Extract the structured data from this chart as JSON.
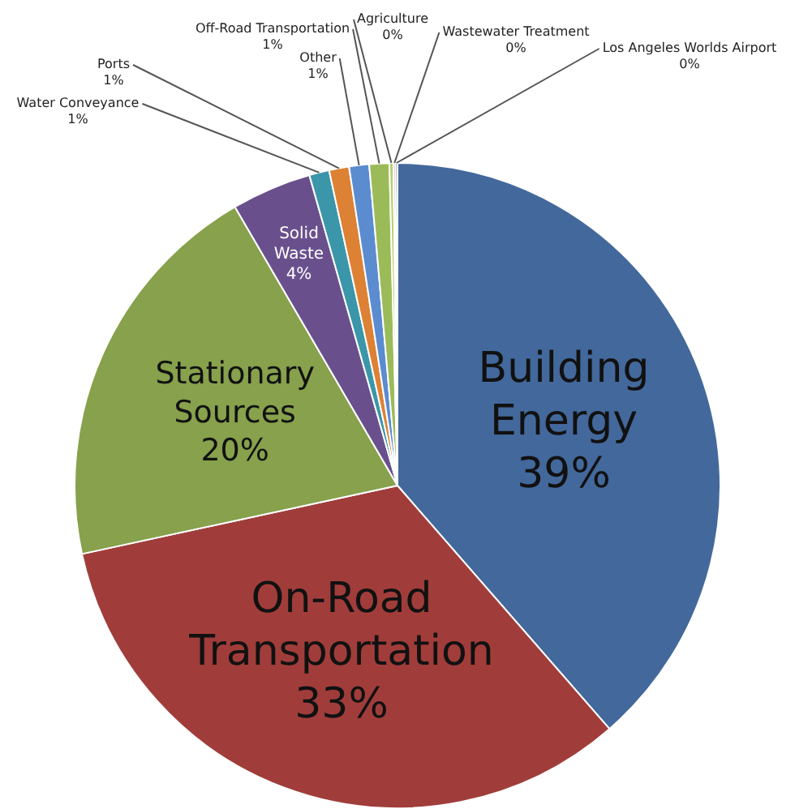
{
  "chart_data": {
    "type": "pie",
    "categories": [
      "Building Energy",
      "On-Road Transportation",
      "Stationary Sources",
      "Solid Waste",
      "Water Conveyance",
      "Ports",
      "Other",
      "Off-Road Transportation",
      "Agriculture",
      "Wastewater Treatment",
      "Los Angeles Worlds Airport"
    ],
    "values": [
      38.6,
      33,
      20,
      4,
      1,
      1,
      1,
      1,
      0.2,
      0.1,
      0.1
    ],
    "value_labels": [
      "39%",
      "33%",
      "20%",
      "4%",
      "1%",
      "1%",
      "1%",
      "1%",
      "0%",
      "0%",
      "0%"
    ],
    "colors": [
      "#43689b",
      "#a03d3a",
      "#87a14c",
      "#69508d",
      "#3b96aa",
      "#dd8134",
      "#5b8cd0",
      "#9bbb59",
      "#b7d06a",
      "#8064a2",
      "#7b5fa8"
    ],
    "data_labels": true,
    "legend": false
  }
}
